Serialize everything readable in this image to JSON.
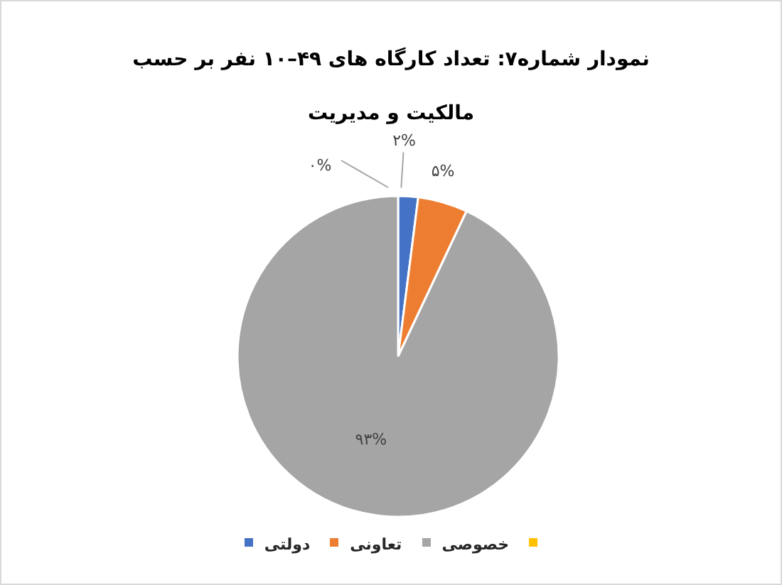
{
  "chart_data": {
    "type": "pie",
    "title": "نمودار شماره۷: تعداد کارگاه های ۴۹–۱۰ نفر بر حسب مالکیت و مدیریت",
    "categories": [
      "دولتی",
      "تعاونی",
      "خصوصی",
      null
    ],
    "values": [
      2,
      5,
      93,
      0
    ],
    "colors": [
      "#4472c4",
      "#ed7d31",
      "#a5a5a5",
      "#ffc000"
    ],
    "value_labels": [
      "۲%",
      "۵%",
      "۹۳%",
      "۰%"
    ],
    "legend": "bottom"
  }
}
